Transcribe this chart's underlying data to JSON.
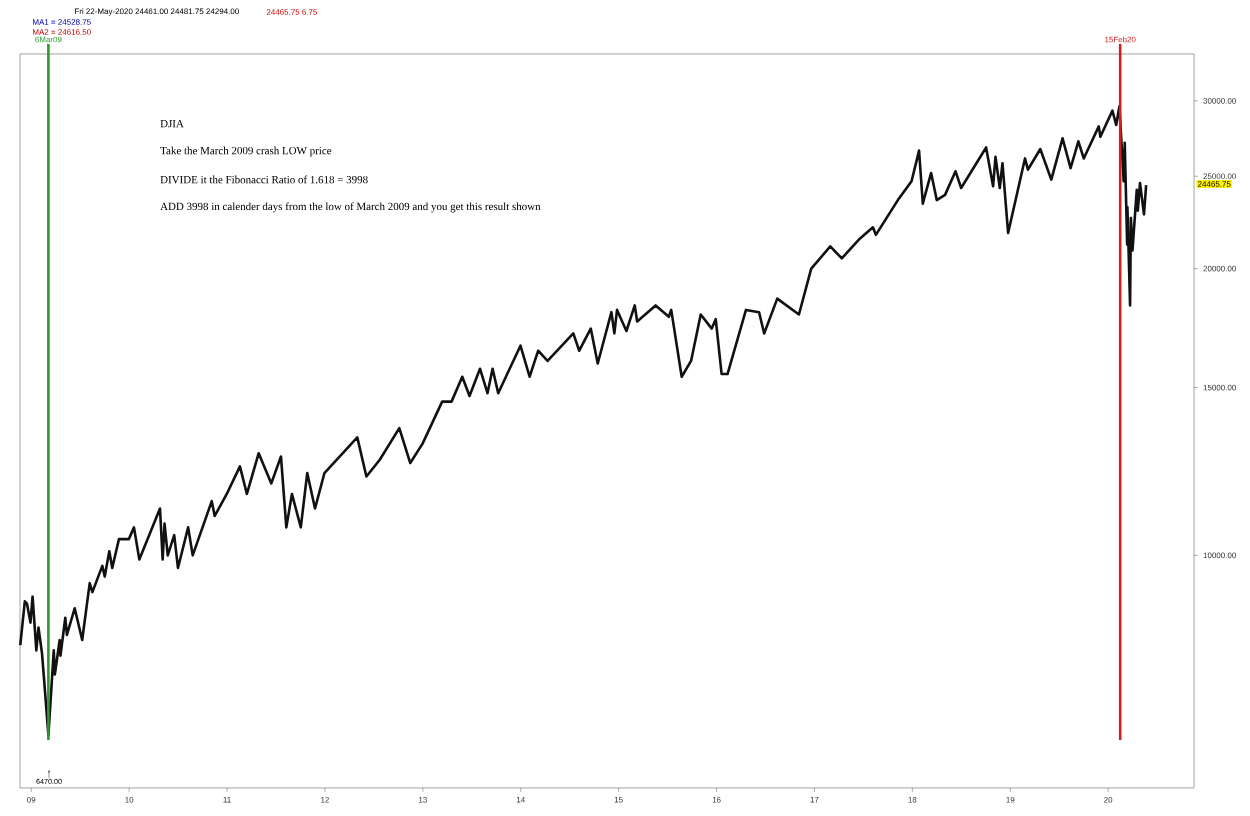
{
  "chart_data": {
    "type": "line",
    "title": "DJIA",
    "annotations": [
      "Take the March 2009 crash LOW price",
      "DIVIDE it the Fibonacci Ratio of 1.618 = 3998",
      "ADD 3998 in calender days from the low of March 2009 and you get this result shown",
      "Fri 22-May-2020 24461.00 24481.75 24294.00",
      "24465.75 6.75",
      "MA1 = 24528.75",
      "MA2 = 24616.50",
      "6470.00",
      "24465.75"
    ],
    "x": [
      "2008-11-21",
      "2008-12-08",
      "2008-12-16",
      "2008-12-29",
      "2009-01-06",
      "2009-01-20",
      "2009-01-28",
      "2009-02-10",
      "2009-02-23",
      "2009-03-06",
      "2009-03-26",
      "2009-03-30",
      "2009-04-17",
      "2009-04-20",
      "2009-05-08",
      "2009-05-14",
      "2009-06-12",
      "2009-07-10",
      "2009-08-07",
      "2009-08-17",
      "2009-09-23",
      "2009-10-02",
      "2009-10-19",
      "2009-10-30",
      "2009-11-24",
      "2009-12-31",
      "2010-01-19",
      "2010-02-08",
      "2010-04-26",
      "2010-05-06",
      "2010-05-13",
      "2010-05-25",
      "2010-06-18",
      "2010-07-02",
      "2010-08-09",
      "2010-08-26",
      "2010-11-05",
      "2010-11-16",
      "2010-12-31",
      "2011-02-18",
      "2011-03-16",
      "2011-04-29",
      "2011-06-15",
      "2011-07-21",
      "2011-08-10",
      "2011-08-31",
      "2011-10-03",
      "2011-10-27",
      "2011-11-25",
      "2011-12-30",
      "2012-05-01",
      "2012-06-04",
      "2012-07-24",
      "2012-10-05",
      "2012-11-15",
      "2012-12-31",
      "2013-03-14",
      "2013-04-18",
      "2013-05-28",
      "2013-06-24",
      "2013-08-02",
      "2013-08-30",
      "2013-09-18",
      "2013-10-09",
      "2013-12-31",
      "2014-02-03",
      "2014-03-07",
      "2014-04-11",
      "2014-07-16",
      "2014-08-07",
      "2014-09-19",
      "2014-10-15",
      "2014-12-05",
      "2014-12-16",
      "2014-12-26",
      "2015-01-30",
      "2015-03-02",
      "2015-03-11",
      "2015-05-19",
      "2015-07-07",
      "2015-07-16",
      "2015-08-24",
      "2015-09-28",
      "2015-11-03",
      "2015-12-14",
      "2015-12-29",
      "2016-01-20",
      "2016-02-11",
      "2016-04-20",
      "2016-06-08",
      "2016-06-27",
      "2016-08-15",
      "2016-11-04",
      "2016-12-20",
      "2017-03-01",
      "2017-04-13",
      "2017-06-19",
      "2017-08-07",
      "2017-08-18",
      "2017-11-08",
      "2017-12-29",
      "2018-01-26",
      "2018-02-09",
      "2018-03-12",
      "2018-04-02",
      "2018-05-03",
      "2018-06-11",
      "2018-07-02",
      "2018-10-03",
      "2018-10-29",
      "2018-11-07",
      "2018-11-23",
      "2018-12-03",
      "2018-12-24",
      "2019-02-25",
      "2019-03-08",
      "2019-04-23",
      "2019-06-03",
      "2019-07-15",
      "2019-08-14",
      "2019-09-12",
      "2019-10-02",
      "2019-11-27",
      "2019-12-03",
      "2020-01-17",
      "2020-01-31",
      "2020-02-12",
      "2020-02-28",
      "2020-03-03",
      "2020-03-12",
      "2020-03-13",
      "2020-03-23",
      "2020-03-26",
      "2020-04-01",
      "2020-04-17",
      "2020-04-21",
      "2020-04-29",
      "2020-05-14",
      "2020-05-22"
    ],
    "series": [
      {
        "color": "#111111",
        "values": [
          8050,
          8950,
          8900,
          8500,
          9050,
          7950,
          8400,
          7900,
          7100,
          6470,
          7950,
          7500,
          8150,
          7850,
          8600,
          8250,
          8800,
          8150,
          9350,
          9150,
          9750,
          9500,
          10100,
          9700,
          10400,
          10400,
          10700,
          9900,
          11200,
          9900,
          10800,
          10000,
          10500,
          9700,
          10700,
          10000,
          11400,
          11000,
          11600,
          12400,
          11600,
          12800,
          11900,
          12700,
          10700,
          11600,
          10700,
          12200,
          11200,
          12200,
          13300,
          12100,
          12600,
          13600,
          12500,
          13100,
          14500,
          14500,
          15400,
          14700,
          15700,
          14800,
          15700,
          14800,
          16600,
          15400,
          16400,
          16000,
          17100,
          16400,
          17300,
          15900,
          18000,
          17100,
          18100,
          17200,
          18300,
          17600,
          18300,
          17800,
          18100,
          15400,
          16000,
          17900,
          17300,
          17700,
          15500,
          15500,
          18100,
          18000,
          17100,
          18600,
          17900,
          20000,
          21100,
          20500,
          21500,
          22100,
          21700,
          23600,
          24700,
          26600,
          23400,
          25200,
          23600,
          23900,
          25300,
          24300,
          26800,
          24400,
          26200,
          24300,
          25800,
          21800,
          26100,
          25400,
          26700,
          24800,
          27400,
          25500,
          27200,
          26100,
          28200,
          27500,
          29300,
          28300,
          29600,
          24700,
          27100,
          21200,
          23200,
          18300,
          22600,
          20900,
          24200,
          23000,
          24600,
          22800,
          24470
        ]
      }
    ],
    "xlim": [
      "2008-11-20",
      "2020-11-17"
    ],
    "xticks": [
      {
        "value": "2009",
        "label": "09"
      },
      {
        "value": "2010",
        "label": "10"
      },
      {
        "value": "2011",
        "label": "11"
      },
      {
        "value": "2012",
        "label": "12"
      },
      {
        "value": "2013",
        "label": "13"
      },
      {
        "value": "2014",
        "label": "14"
      },
      {
        "value": "2015",
        "label": "15"
      },
      {
        "value": "2016",
        "label": "16"
      },
      {
        "value": "2017",
        "label": "17"
      },
      {
        "value": "2018",
        "label": "18"
      },
      {
        "value": "2019",
        "label": "19"
      },
      {
        "value": "2020",
        "label": "20"
      }
    ],
    "ylim": [
      5700,
      33600
    ],
    "yticks": [
      {
        "value": 10000,
        "label": "10000.00"
      },
      {
        "value": 15000,
        "label": "15000.00"
      },
      {
        "value": 20000,
        "label": "20000.00"
      },
      {
        "value": 25000,
        "label": "25000.00"
      },
      {
        "value": 30000,
        "label": "30000.00"
      }
    ],
    "log": true,
    "ref_lines": [
      {
        "axis": "x",
        "value": "2009-03-06",
        "label": "6Mar09",
        "color": "#2a9a2a"
      },
      {
        "axis": "x",
        "value": "2020-02-15",
        "label": "15Feb20",
        "color": "#cc2222"
      }
    ]
  }
}
